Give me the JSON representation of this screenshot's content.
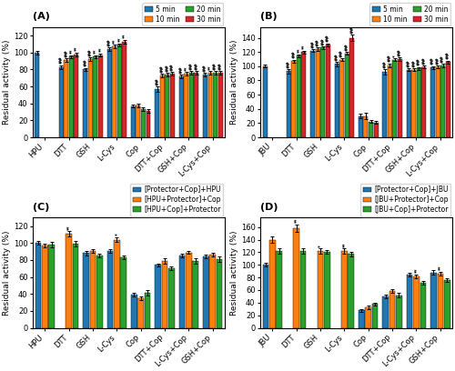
{
  "chart_data": [
    {
      "type": "bar",
      "title": "(A)",
      "categories": [
        "HPU",
        "DTT",
        "GSH",
        "L-Cys",
        "Cop",
        "DTT+Cop",
        "GSH+Cop",
        "L-Cys+Cop"
      ],
      "y_label": "Residual activity (%)",
      "ylim": [
        0,
        130
      ],
      "yticks": [
        0,
        20,
        40,
        60,
        80,
        100,
        120
      ],
      "legend": "upper right",
      "series": [
        {
          "name": "5 min",
          "values": [
            100,
            83,
            80,
            104,
            37,
            57,
            72,
            74
          ],
          "errors": [
            2,
            2,
            2,
            2,
            2,
            3,
            2,
            2
          ],
          "annotations": [
            null,
            "##",
            "##",
            "##",
            null,
            "##",
            "##",
            "##"
          ]
        },
        {
          "name": "10 min",
          "values": [
            null,
            91,
            92,
            107,
            38,
            73,
            75,
            76
          ],
          "errors": [
            null,
            2,
            2,
            2,
            2,
            2,
            2,
            2
          ],
          "annotations": [
            null,
            "##",
            "##",
            "**",
            null,
            "##",
            "**",
            "**"
          ]
        },
        {
          "name": "20 min",
          "values": [
            null,
            95,
            95,
            109,
            33,
            74,
            76,
            76
          ],
          "errors": [
            null,
            2,
            2,
            2,
            2,
            2,
            2,
            2
          ],
          "annotations": [
            null,
            "**",
            "**",
            "**",
            null,
            "##",
            "##",
            "##"
          ]
        },
        {
          "name": "30 min",
          "values": [
            null,
            98,
            97,
            113,
            31,
            75,
            76,
            76
          ],
          "errors": [
            null,
            2,
            2,
            2,
            2,
            2,
            2,
            2
          ],
          "annotations": [
            null,
            "**",
            "**",
            "**",
            null,
            "##",
            "##",
            "##"
          ]
        }
      ]
    },
    {
      "type": "bar",
      "title": "(B)",
      "categories": [
        "JBU",
        "DTT",
        "GSH",
        "L-Cys",
        "Cop",
        "DTT+Cop",
        "GSH+Cop",
        "L-Cys+Cop"
      ],
      "y_label": "Residual activity (%)",
      "ylim": [
        0,
        155
      ],
      "yticks": [
        0,
        20,
        40,
        60,
        80,
        100,
        120,
        140
      ],
      "legend": "upper right",
      "series": [
        {
          "name": "5 min",
          "values": [
            100,
            93,
            122,
            103,
            30,
            92,
            95,
            98
          ],
          "errors": [
            2,
            3,
            2,
            3,
            3,
            4,
            2,
            2
          ],
          "annotations": [
            null,
            "##",
            "##",
            "##",
            null,
            "##",
            "##",
            "##"
          ]
        },
        {
          "name": "10 min",
          "values": [
            null,
            107,
            124,
            109,
            30,
            101,
            95,
            99
          ],
          "errors": [
            null,
            2,
            2,
            2,
            4,
            3,
            2,
            2
          ],
          "annotations": [
            null,
            "##",
            "##",
            "##",
            null,
            "##",
            "##",
            "##"
          ]
        },
        {
          "name": "20 min",
          "values": [
            null,
            115,
            126,
            118,
            22,
            109,
            97,
            101
          ],
          "errors": [
            null,
            2,
            2,
            2,
            2,
            2,
            2,
            2
          ],
          "annotations": [
            null,
            "**",
            "##",
            "##",
            null,
            "*",
            "##",
            "##"
          ]
        },
        {
          "name": "30 min",
          "values": [
            null,
            120,
            130,
            140,
            21,
            110,
            99,
            106
          ],
          "errors": [
            null,
            2,
            2,
            4,
            2,
            2,
            2,
            2
          ],
          "annotations": [
            null,
            "**",
            "##",
            "##",
            null,
            "##",
            "##",
            "##"
          ]
        }
      ]
    },
    {
      "type": "bar",
      "title": "(C)",
      "categories": [
        "HPU",
        "DTT",
        "GSH",
        "L-Cys",
        "Cop",
        "DTT+Cop",
        "L-Cys+Cop",
        "GSH+Cop"
      ],
      "y_label": "Residual activity (%)",
      "ylim": [
        0,
        130
      ],
      "yticks": [
        0,
        20,
        40,
        60,
        80,
        100,
        120
      ],
      "legend": "upper right",
      "series": [
        {
          "name": "[Protector+Cop]+HPU",
          "values": [
            100,
            null,
            88,
            91,
            39,
            74,
            85,
            84
          ],
          "errors": [
            2,
            null,
            3,
            2,
            2,
            2,
            2,
            2
          ]
        },
        {
          "name": "[HPU+Protector]+Cop",
          "values": [
            97,
            111,
            91,
            104,
            35,
            79,
            89,
            86
          ],
          "errors": [
            2,
            3,
            2,
            3,
            2,
            3,
            2,
            2
          ],
          "annotations": [
            null,
            "**",
            null,
            "*",
            null,
            null,
            null,
            null
          ]
        },
        {
          "name": "[HPU+Cop]+Protector",
          "values": [
            98,
            99,
            85,
            83,
            41,
            70,
            79,
            81
          ],
          "errors": [
            3,
            3,
            2,
            2,
            3,
            2,
            3,
            3
          ]
        }
      ]
    },
    {
      "type": "bar",
      "title": "(D)",
      "categories": [
        "JBU",
        "DTT",
        "GSH",
        "L-Cys",
        "Cop",
        "DTT+Cop",
        "L-Cys+Cop",
        "GSH+Cop"
      ],
      "y_label": "Residual activity (%)",
      "ylim": [
        0,
        175
      ],
      "yticks": [
        0,
        20,
        40,
        60,
        80,
        100,
        120,
        140,
        160
      ],
      "legend": "upper right",
      "series": [
        {
          "name": "[Protector+Cop]+JBU",
          "values": [
            100,
            null,
            null,
            null,
            28,
            50,
            85,
            88
          ],
          "errors": [
            3,
            null,
            null,
            null,
            2,
            3,
            3,
            3
          ]
        },
        {
          "name": "[JBU+Protector]+Cop",
          "values": [
            140,
            158,
            122,
            122,
            32,
            58,
            82,
            86
          ],
          "errors": [
            5,
            6,
            4,
            4,
            3,
            3,
            3,
            3
          ],
          "annotations": [
            null,
            "**",
            "*",
            "**",
            null,
            null,
            "**",
            "**"
          ]
        },
        {
          "name": "[JBU+Cop]+Protector",
          "values": [
            122,
            122,
            120,
            117,
            38,
            52,
            72,
            76
          ],
          "errors": [
            4,
            4,
            3,
            3,
            2,
            3,
            3,
            3
          ]
        }
      ]
    }
  ]
}
